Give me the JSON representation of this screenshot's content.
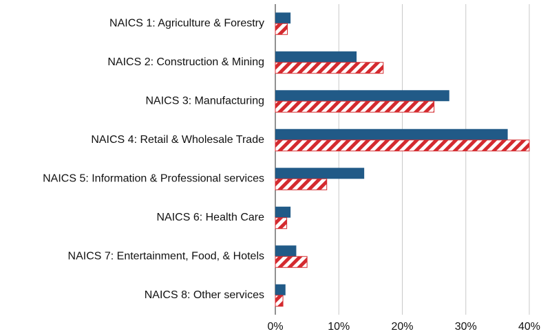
{
  "chart_data": {
    "type": "hbar",
    "categories": [
      "NAICS 1: Agriculture & Forestry",
      "NAICS 2: Construction & Mining",
      "NAICS 3: Manufacturing",
      "NAICS 4: Retail & Wholesale Trade",
      "NAICS 5: Information & Professional services",
      "NAICS 6: Health Care",
      "NAICS 7: Entertainment, Food, & Hotels",
      "NAICS 8: Other services"
    ],
    "series": [
      {
        "color": "#215a87",
        "hatch": false,
        "values": [
          2.4,
          12.8,
          27.4,
          36.6,
          14.0,
          2.4,
          3.3,
          1.6
        ]
      },
      {
        "color": "#d42a2f",
        "hatch": true,
        "values": [
          1.9,
          17.0,
          25.0,
          40.0,
          8.1,
          1.8,
          5.0,
          1.2
        ]
      }
    ],
    "xlim": [
      0,
      40
    ],
    "xticks": [
      {
        "value": 0,
        "label": "0%"
      },
      {
        "value": 10,
        "label": "10%"
      },
      {
        "value": 20,
        "label": "20%"
      },
      {
        "value": 30,
        "label": "30%"
      },
      {
        "value": 40,
        "label": "40%"
      }
    ],
    "grid": true
  }
}
